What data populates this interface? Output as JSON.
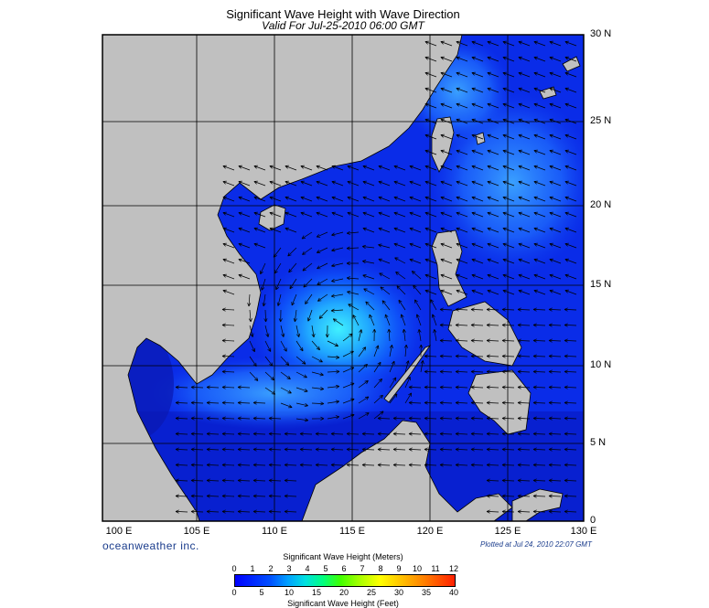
{
  "title": "Significant Wave Height with Wave Direction",
  "subtitle": "Valid For Jul-25-2010 06:00 GMT",
  "lat_labels": [
    "30 N",
    "25 N",
    "20 N",
    "15 N",
    "10 N",
    "5 N",
    "0"
  ],
  "lon_labels": [
    "100 E",
    "105 E",
    "110 E",
    "115 E",
    "120 E",
    "125 E",
    "130 E"
  ],
  "brand": "oceanweather inc.",
  "plotted": "Plotted at Jul 24, 2010 22:07 GMT",
  "colorbar": {
    "meters_title": "Significant Wave Height (Meters)",
    "meters_ticks": [
      "0",
      "1",
      "2",
      "3",
      "4",
      "5",
      "6",
      "7",
      "8",
      "9",
      "10",
      "11",
      "12"
    ],
    "feet_title": "Significant Wave Height (Feet)",
    "feet_ticks": [
      "0",
      "5",
      "10",
      "15",
      "20",
      "25",
      "30",
      "35",
      "40"
    ]
  },
  "colors": {
    "land": "#c0c0c0",
    "sea_low": "#0014d8",
    "sea_high": "#40e0ff"
  }
}
